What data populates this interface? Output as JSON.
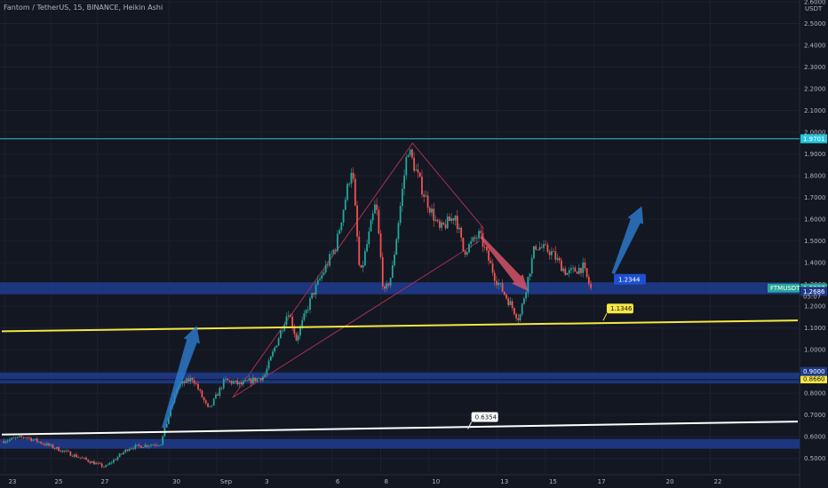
{
  "header": {
    "title": "Fantom / TetherUS, 15, BINANCE, Heikin Ashi",
    "currency": "USDT"
  },
  "colors": {
    "background": "#131722",
    "up": "#26a69a",
    "down": "#ef5350",
    "zone": "#1e3a8a",
    "yellow": "#f5e642",
    "white": "#ffffff",
    "cyan": "#26c6da",
    "arrow_up": "#2e7dd1",
    "arrow_down": "#e0566b",
    "triangle": "#a83050"
  },
  "chart_data": {
    "type": "candlestick",
    "y_axis": {
      "min": 0.45,
      "max": 2.6,
      "ticks": [
        "2.6000",
        "2.5000",
        "2.4000",
        "2.3000",
        "2.2000",
        "2.1000",
        "2.0000",
        "1.9000",
        "1.8000",
        "1.7000",
        "1.6000",
        "1.5000",
        "1.4000",
        "1.3000",
        "1.2000",
        "1.1000",
        "1.0000",
        "0.9000",
        "0.8000",
        "0.7000",
        "0.6000",
        "0.5000"
      ]
    },
    "x_axis": {
      "ticks": [
        "23",
        "25",
        "27",
        "30",
        "Sep",
        "3",
        "6",
        "8",
        "10",
        "13",
        "15",
        "17",
        "20",
        "22"
      ]
    },
    "price_path": [
      {
        "t": 0,
        "p": 0.58
      },
      {
        "t": 3,
        "p": 0.6
      },
      {
        "t": 8,
        "p": 0.53
      },
      {
        "t": 13,
        "p": 0.46
      },
      {
        "t": 16,
        "p": 0.55
      },
      {
        "t": 20,
        "p": 0.57
      },
      {
        "t": 22,
        "p": 0.83
      },
      {
        "t": 24,
        "p": 0.87
      },
      {
        "t": 26,
        "p": 0.72
      },
      {
        "t": 28,
        "p": 0.86
      },
      {
        "t": 30,
        "p": 0.84
      },
      {
        "t": 33,
        "p": 0.88
      },
      {
        "t": 36,
        "p": 1.18
      },
      {
        "t": 37,
        "p": 1.05
      },
      {
        "t": 39,
        "p": 1.25
      },
      {
        "t": 42,
        "p": 1.48
      },
      {
        "t": 44,
        "p": 1.85
      },
      {
        "t": 45,
        "p": 1.33
      },
      {
        "t": 47,
        "p": 1.68
      },
      {
        "t": 48,
        "p": 1.25
      },
      {
        "t": 49,
        "p": 1.35
      },
      {
        "t": 51,
        "p": 1.93
      },
      {
        "t": 53,
        "p": 1.72
      },
      {
        "t": 55,
        "p": 1.55
      },
      {
        "t": 57,
        "p": 1.62
      },
      {
        "t": 58,
        "p": 1.45
      },
      {
        "t": 60,
        "p": 1.53
      },
      {
        "t": 62,
        "p": 1.33
      },
      {
        "t": 65,
        "p": 1.14
      },
      {
        "t": 67,
        "p": 1.48
      },
      {
        "t": 69,
        "p": 1.45
      },
      {
        "t": 71,
        "p": 1.35
      },
      {
        "t": 73,
        "p": 1.38
      },
      {
        "t": 74,
        "p": 1.28
      }
    ],
    "horizontal_lines": [
      {
        "price": 1.9701,
        "label": "1.9701",
        "color": "#26c6da"
      }
    ],
    "zones": [
      {
        "low": 1.255,
        "high": 1.31
      },
      {
        "low": 0.865,
        "high": 0.895
      },
      {
        "low": 0.845,
        "high": 0.86
      },
      {
        "low": 0.545,
        "high": 0.59
      }
    ],
    "trendlines": [
      {
        "color": "#f5e642",
        "t1": 0,
        "p1": 1.085,
        "t2": 100,
        "p2": 1.135,
        "label": "1.1346",
        "label_t": 76,
        "label_p": 1.1346
      },
      {
        "color": "#ffffff",
        "t1": 0,
        "p1": 0.61,
        "t2": 100,
        "p2": 0.67,
        "label": "0.6354",
        "label_t": 59,
        "label_p": 0.6354
      }
    ],
    "annotations": [
      {
        "text": "1.2344",
        "t": 76,
        "p": 1.2344
      }
    ],
    "price_labels": [
      {
        "text": "1.2840",
        "price": 1.284,
        "color": "#ef5350"
      },
      {
        "text": "1.2837",
        "price": 1.2837,
        "color": "#26a69a"
      },
      {
        "text": "1.2686",
        "price": 1.2686,
        "color": "#1e3a8a"
      },
      {
        "text": "0.8660",
        "price": 0.866,
        "color": "#f5e642"
      },
      {
        "text": "0.9000",
        "price": 0.9,
        "color": "#1e3a8a"
      }
    ],
    "symbol_tag": {
      "name": "FTMUSDT",
      "price": "1.2837",
      "countdown": "05:07"
    }
  }
}
